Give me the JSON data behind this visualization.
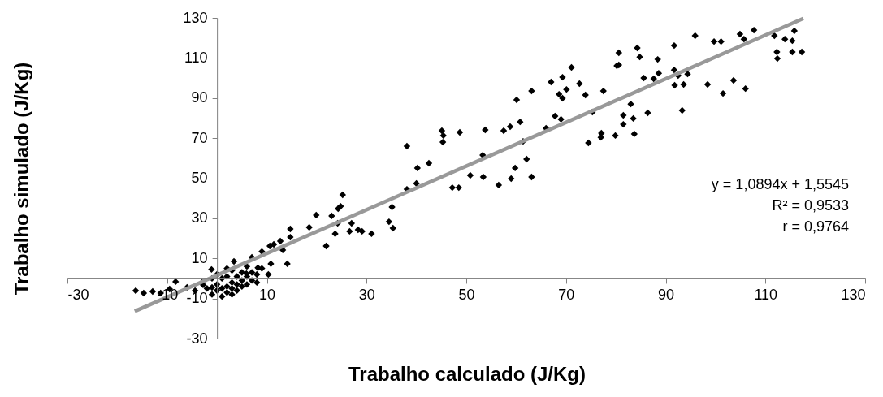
{
  "chart_data": {
    "type": "scatter",
    "xlabel": "Trabalho calculado (J/Kg)",
    "ylabel": "Trabalho simulado (J/Kg)",
    "xlim": [
      -30,
      130
    ],
    "ylim": [
      -30,
      130
    ],
    "xticks": [
      -30,
      -10,
      10,
      30,
      50,
      70,
      90,
      110,
      130
    ],
    "yticks": [
      -30,
      -10,
      10,
      30,
      50,
      70,
      90,
      110,
      130
    ],
    "grid": false,
    "annotations": [
      "y = 1,0894x + 1,5545",
      "R² = 0,9533",
      "r = 0,9764"
    ],
    "series": [
      {
        "marker": "diamond",
        "color": "#000000",
        "x": [
          107.7,
          104.9,
          105.7,
          95.9,
          99.7,
          101.1,
          91.7,
          84.3,
          80.6,
          84.8,
          88.4,
          80.6,
          115.8,
          111.8,
          113.9,
          115.4,
          112.3,
          112.4,
          115.4,
          117.3,
          85.6,
          87.6,
          88.6,
          91.7,
          92.5,
          94.4,
          91.8,
          93.6,
          98.4,
          103.6,
          101.5,
          106.0,
          83.0,
          81.5,
          83.5,
          81.5,
          86.4,
          93.3,
          83.7,
          71.1,
          80.2,
          67.0,
          69.3,
          72.7,
          70.1,
          68.6,
          69.3,
          73.9,
          77.5,
          63.1,
          60.1,
          79.9,
          77.1,
          77.0,
          74.5,
          75.3,
          67.8,
          69.0,
          66.0,
          60.8,
          58.8,
          57.5,
          53.8,
          48.7,
          45.1,
          45.4,
          45.3,
          61.4,
          53.3,
          62.1,
          59.8,
          59.0,
          63.1,
          56.5,
          53.4,
          50.8,
          42.5,
          40.2,
          40.0,
          38.1,
          47.2,
          48.5,
          38.1,
          25.2,
          24.8,
          24.3,
          35.1,
          34.5,
          35.3,
          19.9,
          23.0,
          18.5,
          24.2,
          27.0,
          26.6,
          28.3,
          29.1,
          31.0,
          23.7,
          14.7,
          14.7,
          21.9,
          12.7,
          10.6,
          13.2,
          11.4,
          14.1,
          10.8,
          9.0,
          10.3,
          7.0,
          3.4,
          8.2,
          5.9,
          -1.1,
          -16.3,
          -14.7,
          -12.9,
          -11.3,
          -9.5,
          -8.3,
          -6.0,
          -4.4,
          -2.8,
          -1.0,
          -3,
          -2,
          -1,
          0,
          0,
          1,
          1,
          1,
          2,
          2,
          2,
          3,
          3,
          3,
          4,
          4,
          4,
          5,
          5,
          5,
          6,
          6,
          7,
          7,
          8,
          0,
          -1,
          2,
          3,
          8,
          9,
          6
        ],
        "values": [
          123.9,
          121.9,
          119.4,
          121.1,
          118.2,
          118.2,
          116.2,
          115.0,
          112.6,
          110.5,
          109.3,
          106.5,
          123.5,
          121.1,
          119.4,
          118.6,
          113.0,
          109.7,
          113.0,
          113.0,
          100.0,
          99.6,
          102.4,
          104.0,
          101.2,
          102.0,
          96.4,
          96.8,
          96.8,
          98.8,
          92.3,
          94.7,
          87.0,
          81.4,
          79.8,
          76.9,
          82.6,
          83.8,
          72.1,
          105.3,
          106.1,
          98.0,
          100.4,
          97.2,
          94.3,
          91.9,
          89.9,
          91.5,
          93.5,
          93.5,
          89.1,
          71.3,
          72.5,
          70.4,
          67.6,
          83.0,
          81.0,
          79.4,
          74.9,
          78.1,
          75.7,
          73.7,
          74.1,
          72.9,
          73.7,
          71.3,
          68.0,
          68.4,
          61.5,
          59.5,
          55.1,
          49.8,
          50.6,
          46.6,
          50.6,
          51.4,
          57.5,
          55.1,
          47.4,
          44.5,
          45.3,
          45.3,
          66.0,
          41.7,
          36.0,
          34.8,
          35.6,
          28.3,
          25.1,
          31.6,
          31.2,
          25.5,
          27.5,
          27.5,
          23.5,
          24.3,
          23.5,
          22.3,
          22.3,
          24.7,
          20.6,
          16.2,
          18.6,
          16.2,
          14.2,
          17.0,
          7.3,
          7.3,
          13.4,
          2.0,
          10.5,
          8.5,
          5.3,
          2.4,
          4.5,
          -6.1,
          -7.3,
          -6.5,
          -7.3,
          -5.3,
          -1.6,
          -4.5,
          -6.1,
          -3.2,
          -4.5,
          -2,
          -5,
          -8,
          -6,
          -3,
          -9,
          -5,
          0,
          -7,
          -4,
          1,
          -8,
          -5,
          -2,
          -6,
          -3,
          1,
          -4,
          -1,
          3,
          -3,
          1,
          -1,
          3,
          2,
          2,
          0,
          5,
          4,
          -2,
          5,
          6
        ]
      },
      {
        "type": "line",
        "marker": "none",
        "color": "#999999",
        "x": [
          -16.5,
          117.6
        ],
        "values": [
          -16.4,
          129.7
        ]
      }
    ]
  }
}
